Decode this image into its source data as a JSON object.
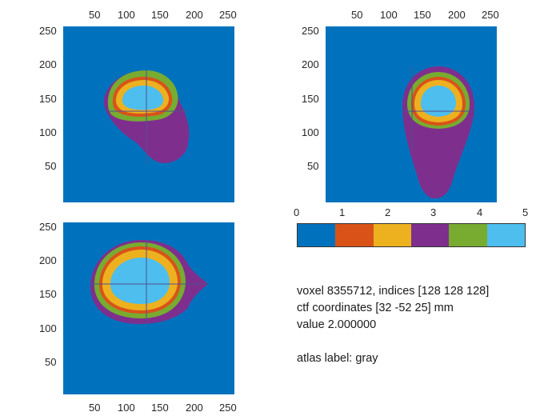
{
  "panels": {
    "sagittal": {
      "name": "sagittal-slice",
      "top_ticks": [
        "50",
        "100",
        "150",
        "200",
        "250"
      ],
      "left_ticks": [
        "250",
        "200",
        "150",
        "100",
        "50"
      ]
    },
    "coronal": {
      "name": "coronal-slice",
      "top_ticks": [
        "50",
        "100",
        "150",
        "200",
        "250"
      ],
      "left_ticks": [
        "250",
        "200",
        "150",
        "100",
        "50"
      ]
    },
    "axial": {
      "name": "axial-slice",
      "bottom_ticks": [
        "50",
        "100",
        "150",
        "200",
        "250"
      ],
      "left_ticks": [
        "250",
        "200",
        "150",
        "100",
        "50"
      ]
    }
  },
  "colorbar": {
    "ticks": [
      "0",
      "1",
      "2",
      "3",
      "4",
      "5"
    ],
    "colors": [
      "#0072bd",
      "#d95319",
      "#edb120",
      "#7e2f8e",
      "#77ac30",
      "#4dbeee"
    ]
  },
  "info": {
    "line1": "voxel 8355712, indices [128 128 128]",
    "line2": "ctf coordinates [32 -52 25] mm",
    "line3": "value 2.000000",
    "line4": "atlas label: gray"
  },
  "colors": {
    "background": "#0072bd",
    "skin": "#7e2f8e",
    "skull": "#77ac30",
    "csf": "#4dbeee",
    "gray": "#edb120",
    "white": "#d95319"
  }
}
